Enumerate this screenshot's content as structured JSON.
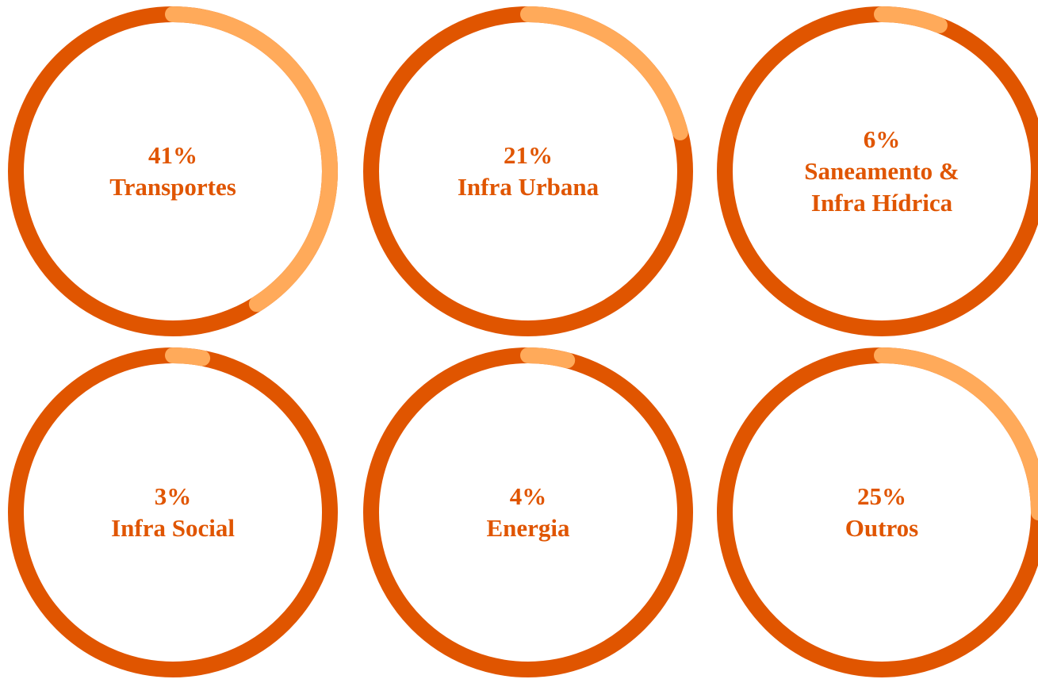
{
  "chart_data": [
    {
      "type": "ring",
      "categories": [
        "Transportes"
      ],
      "values": [
        41
      ],
      "value_labels": [
        "41%"
      ],
      "color": "#ffaa5a",
      "track_color": "#e05500"
    },
    {
      "type": "ring",
      "categories": [
        "Infra Urbana"
      ],
      "values": [
        21
      ],
      "value_labels": [
        "21%"
      ],
      "color": "#ffaa5a",
      "track_color": "#e05500"
    },
    {
      "type": "ring",
      "categories": [
        "Saneamento & Infra Hídrica"
      ],
      "values": [
        6
      ],
      "value_labels": [
        "6%"
      ],
      "color": "#ffaa5a",
      "track_color": "#e05500"
    },
    {
      "type": "ring",
      "categories": [
        "Infra Social"
      ],
      "values": [
        3
      ],
      "value_labels": [
        "3%"
      ],
      "color": "#ffaa5a",
      "track_color": "#e05500"
    },
    {
      "type": "ring",
      "categories": [
        "Energia"
      ],
      "values": [
        4
      ],
      "value_labels": [
        "4%"
      ],
      "color": "#ffaa5a",
      "track_color": "#e05500"
    },
    {
      "type": "ring",
      "categories": [
        "Outros"
      ],
      "values": [
        25
      ],
      "value_labels": [
        "25%"
      ],
      "color": "#ffaa5a",
      "track_color": "#e05500"
    }
  ]
}
